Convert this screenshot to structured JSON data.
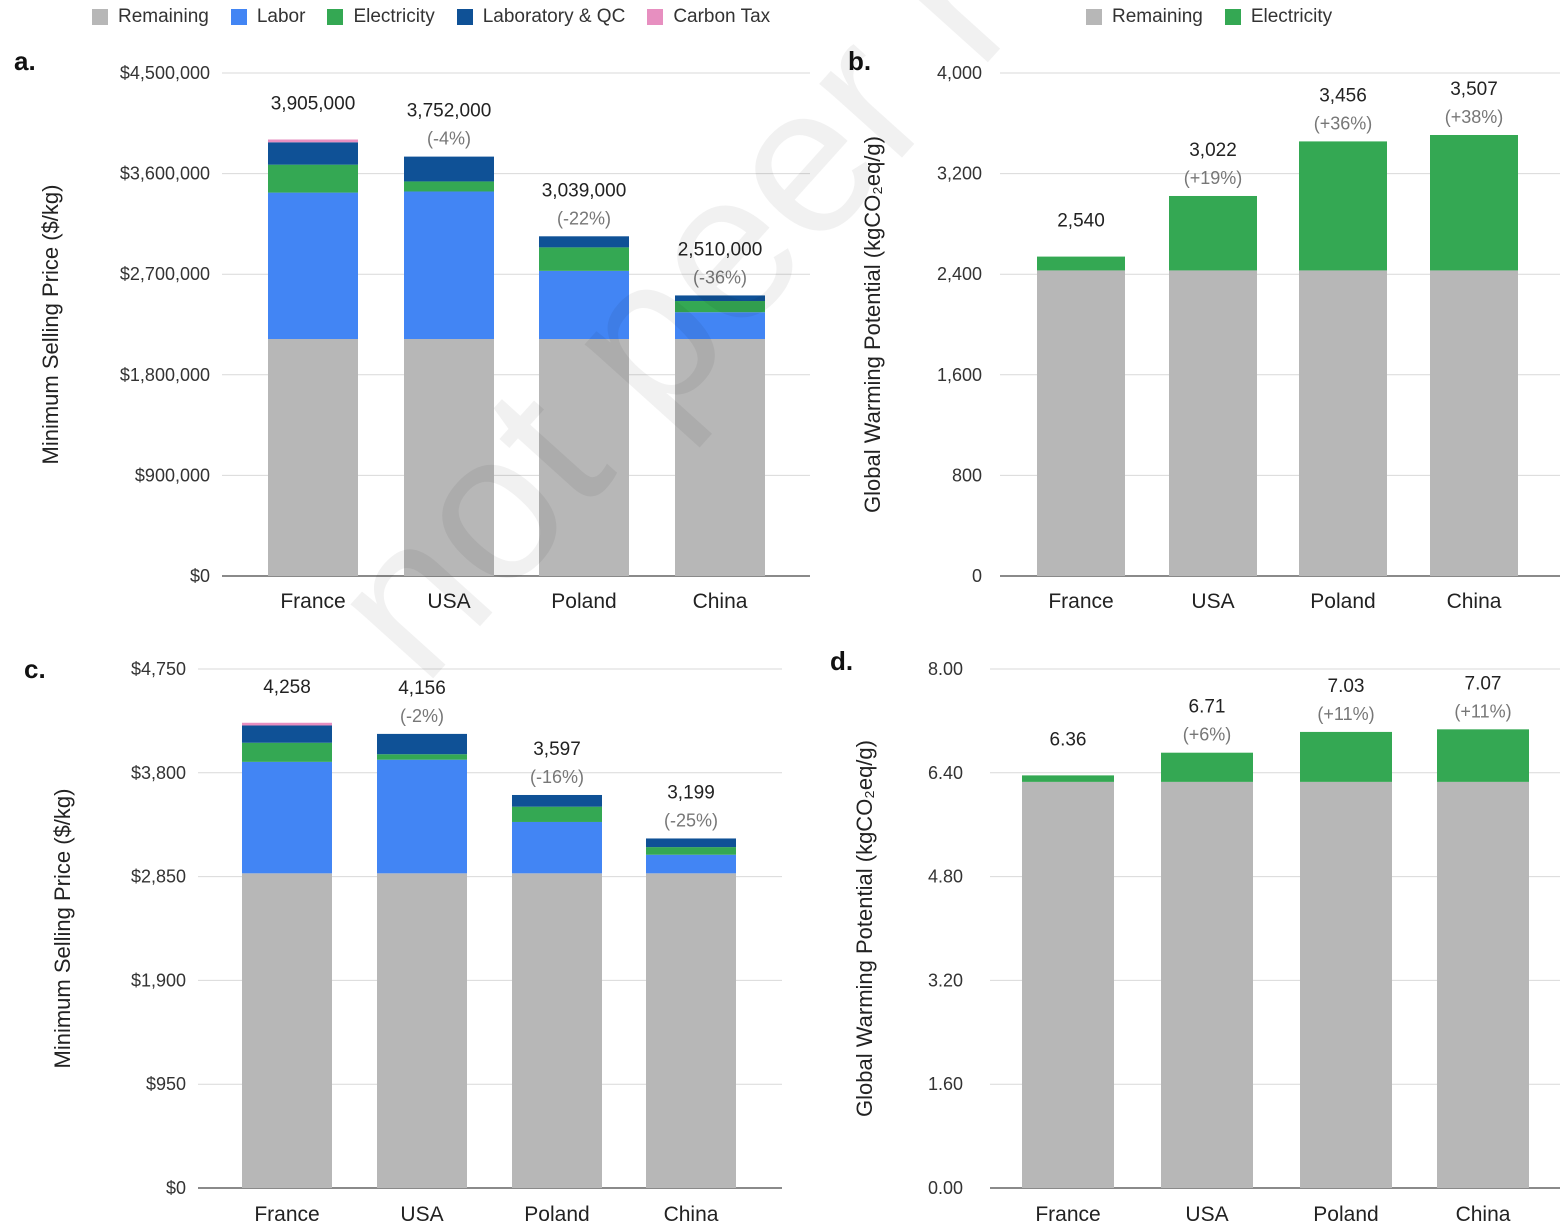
{
  "legend_left": [
    {
      "label": "Remaining",
      "color": "#b7b7b7"
    },
    {
      "label": "Labor",
      "color": "#4285f4"
    },
    {
      "label": "Electricity",
      "color": "#34a853"
    },
    {
      "label": "Laboratory & QC",
      "color": "#0f5196"
    },
    {
      "label": "Carbon Tax",
      "color": "#e78fc0"
    }
  ],
  "legend_right": [
    {
      "label": "Remaining",
      "color": "#b7b7b7"
    },
    {
      "label": "Electricity",
      "color": "#34a853"
    }
  ],
  "watermark": "not peer review",
  "chart_data": [
    {
      "panel": "a.",
      "type": "bar",
      "stacked": true,
      "ylabel": "Minimum Selling Price ($/kg)",
      "ylim": [
        0,
        4500000
      ],
      "yticks": [
        0,
        900000,
        1800000,
        2700000,
        3600000,
        4500000
      ],
      "ytick_labels": [
        "$0",
        "$900,000",
        "$1,800,000",
        "$2,700,000",
        "$3,600,000",
        "$4,500,000"
      ],
      "categories": [
        "France",
        "USA",
        "Poland",
        "China"
      ],
      "series": [
        {
          "name": "Remaining",
          "color": "#b7b7b7",
          "values": [
            2120000,
            2120000,
            2120000,
            2120000
          ]
        },
        {
          "name": "Labor",
          "color": "#4285f4",
          "values": [
            1310000,
            1320000,
            610000,
            240000
          ]
        },
        {
          "name": "Electricity",
          "color": "#34a853",
          "values": [
            250000,
            90000,
            210000,
            100000
          ]
        },
        {
          "name": "Laboratory & QC",
          "color": "#0f5196",
          "values": [
            200000,
            222000,
            99000,
            50000
          ]
        },
        {
          "name": "Carbon Tax",
          "color": "#e78fc0",
          "values": [
            25000,
            0,
            0,
            0
          ]
        }
      ],
      "totals": [
        "3,905,000",
        "3,752,000",
        "3,039,000",
        "2,510,000"
      ],
      "changes": [
        "",
        "(-4%)",
        "(-22%)",
        "(-36%)"
      ]
    },
    {
      "panel": "b.",
      "type": "bar",
      "stacked": true,
      "ylabel": "Global Warming Potential (kgCO₂eq/g)",
      "ylim": [
        0,
        4000
      ],
      "yticks": [
        0,
        800,
        1600,
        2400,
        3200,
        4000
      ],
      "ytick_labels": [
        "0",
        "800",
        "1,600",
        "2,400",
        "3,200",
        "4,000"
      ],
      "categories": [
        "France",
        "USA",
        "Poland",
        "China"
      ],
      "series": [
        {
          "name": "Remaining",
          "color": "#b7b7b7",
          "values": [
            2430,
            2430,
            2430,
            2430
          ]
        },
        {
          "name": "Electricity",
          "color": "#34a853",
          "values": [
            110,
            592,
            1026,
            1077
          ]
        }
      ],
      "totals": [
        "2,540",
        "3,022",
        "3,456",
        "3,507"
      ],
      "changes": [
        "",
        "(+19%)",
        "(+36%)",
        "(+38%)"
      ]
    },
    {
      "panel": "c.",
      "type": "bar",
      "stacked": true,
      "ylabel": "Minimum Selling Price ($/kg)",
      "ylim": [
        0,
        4750
      ],
      "yticks": [
        0,
        950,
        1900,
        2850,
        3800,
        4750
      ],
      "ytick_labels": [
        "$0",
        "$950",
        "$1,900",
        "$2,850",
        "$3,800",
        "$4,750"
      ],
      "categories": [
        "France",
        "USA",
        "Poland",
        "China"
      ],
      "series": [
        {
          "name": "Remaining",
          "color": "#b7b7b7",
          "values": [
            2880,
            2880,
            2880,
            2880
          ]
        },
        {
          "name": "Labor",
          "color": "#4285f4",
          "values": [
            1020,
            1040,
            470,
            170
          ]
        },
        {
          "name": "Electricity",
          "color": "#34a853",
          "values": [
            175,
            50,
            140,
            70
          ]
        },
        {
          "name": "Laboratory & QC",
          "color": "#0f5196",
          "values": [
            158,
            186,
            107,
            79
          ]
        },
        {
          "name": "Carbon Tax",
          "color": "#e78fc0",
          "values": [
            25,
            0,
            0,
            0
          ]
        }
      ],
      "totals": [
        "4,258",
        "4,156",
        "3,597",
        "3,199"
      ],
      "changes": [
        "",
        "(-2%)",
        "(-16%)",
        "(-25%)"
      ]
    },
    {
      "panel": "d.",
      "type": "bar",
      "stacked": true,
      "ylabel": "Global Warming Potential (kgCO₂eq/g)",
      "ylim": [
        0,
        8
      ],
      "yticks": [
        0,
        1.6,
        3.2,
        4.8,
        6.4,
        8
      ],
      "ytick_labels": [
        "0.00",
        "1.60",
        "3.20",
        "4.80",
        "6.40",
        "8.00"
      ],
      "categories": [
        "France",
        "USA",
        "Poland",
        "China"
      ],
      "series": [
        {
          "name": "Remaining",
          "color": "#b7b7b7",
          "values": [
            6.26,
            6.26,
            6.26,
            6.26
          ]
        },
        {
          "name": "Electricity",
          "color": "#34a853",
          "values": [
            0.1,
            0.45,
            0.77,
            0.81
          ]
        }
      ],
      "totals": [
        "6.36",
        "6.71",
        "7.03",
        "7.07"
      ],
      "changes": [
        "",
        "(+6%)",
        "(+11%)",
        "(+11%)"
      ]
    }
  ]
}
